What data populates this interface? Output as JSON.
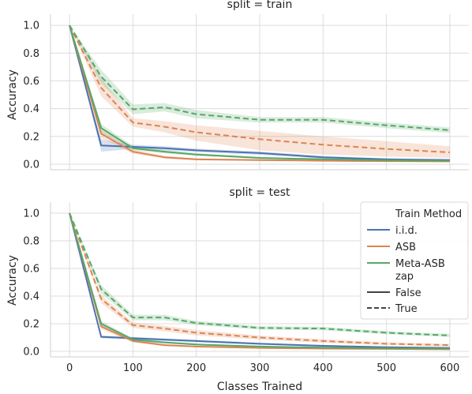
{
  "chart_data": [
    {
      "type": "line",
      "title": "split = train",
      "xlabel": "",
      "ylabel": "Accuracy",
      "xlim": [
        -30,
        630
      ],
      "ylim": [
        -0.04,
        1.08
      ],
      "xticks": [
        0,
        100,
        200,
        300,
        400,
        500,
        600
      ],
      "yticks": [
        0.0,
        0.2,
        0.4,
        0.6,
        0.8,
        1.0
      ],
      "ytick_labels": [
        "0.0",
        "0.2",
        "0.4",
        "0.6",
        "0.8",
        "1.0"
      ],
      "grid": true,
      "series": [
        {
          "name": "i.i.d.",
          "zap": "False",
          "color": "#4c72b0",
          "dashed": false,
          "x": [
            0,
            50,
            100,
            150,
            200,
            300,
            400,
            500,
            600
          ],
          "y": [
            1.0,
            0.135,
            0.125,
            0.115,
            0.1,
            0.08,
            0.05,
            0.035,
            0.03
          ],
          "lower": [
            1.0,
            0.09,
            0.11,
            0.1,
            0.088,
            0.068,
            0.04,
            0.028,
            0.022
          ],
          "upper": [
            1.0,
            0.18,
            0.14,
            0.13,
            0.112,
            0.092,
            0.06,
            0.042,
            0.038
          ]
        },
        {
          "name": "ASB",
          "zap": "False",
          "color": "#dd8452",
          "dashed": false,
          "x": [
            0,
            50,
            100,
            150,
            200,
            300,
            400,
            500,
            600
          ],
          "y": [
            1.0,
            0.22,
            0.09,
            0.05,
            0.035,
            0.03,
            0.025,
            0.022,
            0.02
          ],
          "lower": [
            1.0,
            0.19,
            0.075,
            0.04,
            0.028,
            0.024,
            0.02,
            0.017,
            0.015
          ],
          "upper": [
            1.0,
            0.25,
            0.105,
            0.06,
            0.042,
            0.036,
            0.03,
            0.027,
            0.025
          ]
        },
        {
          "name": "Meta-ASB",
          "zap": "False",
          "color": "#55a868",
          "dashed": false,
          "x": [
            0,
            50,
            100,
            150,
            200,
            300,
            400,
            500,
            600
          ],
          "y": [
            1.0,
            0.26,
            0.115,
            0.09,
            0.07,
            0.045,
            0.035,
            0.028,
            0.025
          ],
          "lower": [
            1.0,
            0.23,
            0.1,
            0.078,
            0.06,
            0.038,
            0.029,
            0.022,
            0.02
          ],
          "upper": [
            1.0,
            0.29,
            0.13,
            0.102,
            0.08,
            0.052,
            0.041,
            0.034,
            0.03
          ]
        },
        {
          "name": "ASB",
          "zap": "True",
          "color": "#dd8452",
          "dashed": true,
          "x": [
            0,
            50,
            100,
            150,
            200,
            300,
            400,
            500,
            600
          ],
          "y": [
            1.0,
            0.55,
            0.3,
            0.27,
            0.23,
            0.18,
            0.14,
            0.11,
            0.085
          ],
          "lower": [
            1.0,
            0.49,
            0.27,
            0.23,
            0.17,
            0.1,
            0.07,
            0.055,
            0.045
          ],
          "upper": [
            1.0,
            0.62,
            0.33,
            0.31,
            0.28,
            0.24,
            0.2,
            0.165,
            0.13
          ]
        },
        {
          "name": "Meta-ASB",
          "zap": "True",
          "color": "#55a868",
          "dashed": true,
          "x": [
            0,
            50,
            100,
            150,
            200,
            300,
            400,
            500,
            600
          ],
          "y": [
            1.0,
            0.63,
            0.395,
            0.41,
            0.36,
            0.32,
            0.32,
            0.28,
            0.245
          ],
          "lower": [
            1.0,
            0.58,
            0.36,
            0.38,
            0.33,
            0.3,
            0.3,
            0.26,
            0.225
          ],
          "upper": [
            1.0,
            0.68,
            0.43,
            0.44,
            0.39,
            0.34,
            0.34,
            0.3,
            0.265
          ]
        }
      ]
    },
    {
      "type": "line",
      "title": "split = test",
      "xlabel": "Classes Trained",
      "ylabel": "Accuracy",
      "xlim": [
        -30,
        630
      ],
      "ylim": [
        -0.04,
        1.08
      ],
      "xticks": [
        0,
        100,
        200,
        300,
        400,
        500,
        600
      ],
      "yticks": [
        0.0,
        0.2,
        0.4,
        0.6,
        0.8,
        1.0
      ],
      "ytick_labels": [
        "0.0",
        "0.2",
        "0.4",
        "0.6",
        "0.8",
        "1.0"
      ],
      "grid": true,
      "series": [
        {
          "name": "i.i.d.",
          "zap": "False",
          "color": "#4c72b0",
          "dashed": false,
          "x": [
            0,
            50,
            100,
            150,
            200,
            300,
            400,
            500,
            600
          ],
          "y": [
            1.0,
            0.105,
            0.095,
            0.085,
            0.075,
            0.055,
            0.04,
            0.03,
            0.025
          ],
          "lower": [
            1.0,
            0.095,
            0.085,
            0.076,
            0.066,
            0.048,
            0.034,
            0.025,
            0.02
          ],
          "upper": [
            1.0,
            0.115,
            0.105,
            0.094,
            0.084,
            0.062,
            0.046,
            0.035,
            0.03
          ]
        },
        {
          "name": "ASB",
          "zap": "False",
          "color": "#dd8452",
          "dashed": false,
          "x": [
            0,
            50,
            100,
            150,
            200,
            300,
            400,
            500,
            600
          ],
          "y": [
            1.0,
            0.18,
            0.075,
            0.045,
            0.035,
            0.025,
            0.02,
            0.018,
            0.015
          ],
          "lower": [
            1.0,
            0.16,
            0.065,
            0.038,
            0.029,
            0.02,
            0.016,
            0.014,
            0.012
          ],
          "upper": [
            1.0,
            0.2,
            0.085,
            0.052,
            0.041,
            0.03,
            0.024,
            0.022,
            0.018
          ]
        },
        {
          "name": "Meta-ASB",
          "zap": "False",
          "color": "#55a868",
          "dashed": false,
          "x": [
            0,
            50,
            100,
            150,
            200,
            300,
            400,
            500,
            600
          ],
          "y": [
            1.0,
            0.2,
            0.085,
            0.065,
            0.05,
            0.035,
            0.027,
            0.022,
            0.02
          ],
          "lower": [
            1.0,
            0.18,
            0.075,
            0.057,
            0.043,
            0.03,
            0.023,
            0.018,
            0.016
          ],
          "upper": [
            1.0,
            0.22,
            0.095,
            0.073,
            0.057,
            0.04,
            0.031,
            0.026,
            0.024
          ]
        },
        {
          "name": "ASB",
          "zap": "True",
          "color": "#dd8452",
          "dashed": true,
          "x": [
            0,
            50,
            100,
            150,
            200,
            300,
            400,
            500,
            600
          ],
          "y": [
            1.0,
            0.38,
            0.19,
            0.165,
            0.135,
            0.1,
            0.075,
            0.055,
            0.045
          ],
          "lower": [
            1.0,
            0.35,
            0.17,
            0.145,
            0.115,
            0.085,
            0.062,
            0.045,
            0.036
          ],
          "upper": [
            1.0,
            0.41,
            0.21,
            0.185,
            0.155,
            0.115,
            0.088,
            0.065,
            0.054
          ]
        },
        {
          "name": "Meta-ASB",
          "zap": "True",
          "color": "#55a868",
          "dashed": true,
          "x": [
            0,
            50,
            100,
            150,
            200,
            300,
            400,
            500,
            600
          ],
          "y": [
            1.0,
            0.45,
            0.245,
            0.245,
            0.205,
            0.17,
            0.165,
            0.135,
            0.115
          ],
          "lower": [
            1.0,
            0.42,
            0.225,
            0.225,
            0.19,
            0.158,
            0.152,
            0.124,
            0.104
          ],
          "upper": [
            1.0,
            0.48,
            0.265,
            0.265,
            0.22,
            0.182,
            0.178,
            0.146,
            0.126
          ]
        }
      ]
    }
  ],
  "legend": {
    "location": "upper-right of lower panel",
    "header_method": "Train Method",
    "method_entries": [
      {
        "label": "i.i.d.",
        "color": "#4c72b0"
      },
      {
        "label": "ASB",
        "color": "#dd8452"
      },
      {
        "label": "Meta-ASB",
        "color": "#55a868"
      }
    ],
    "header_zap": "zap",
    "zap_entries": [
      {
        "label": "False",
        "dashed": false,
        "color": "#444444"
      },
      {
        "label": "True",
        "dashed": true,
        "color": "#444444"
      }
    ]
  }
}
